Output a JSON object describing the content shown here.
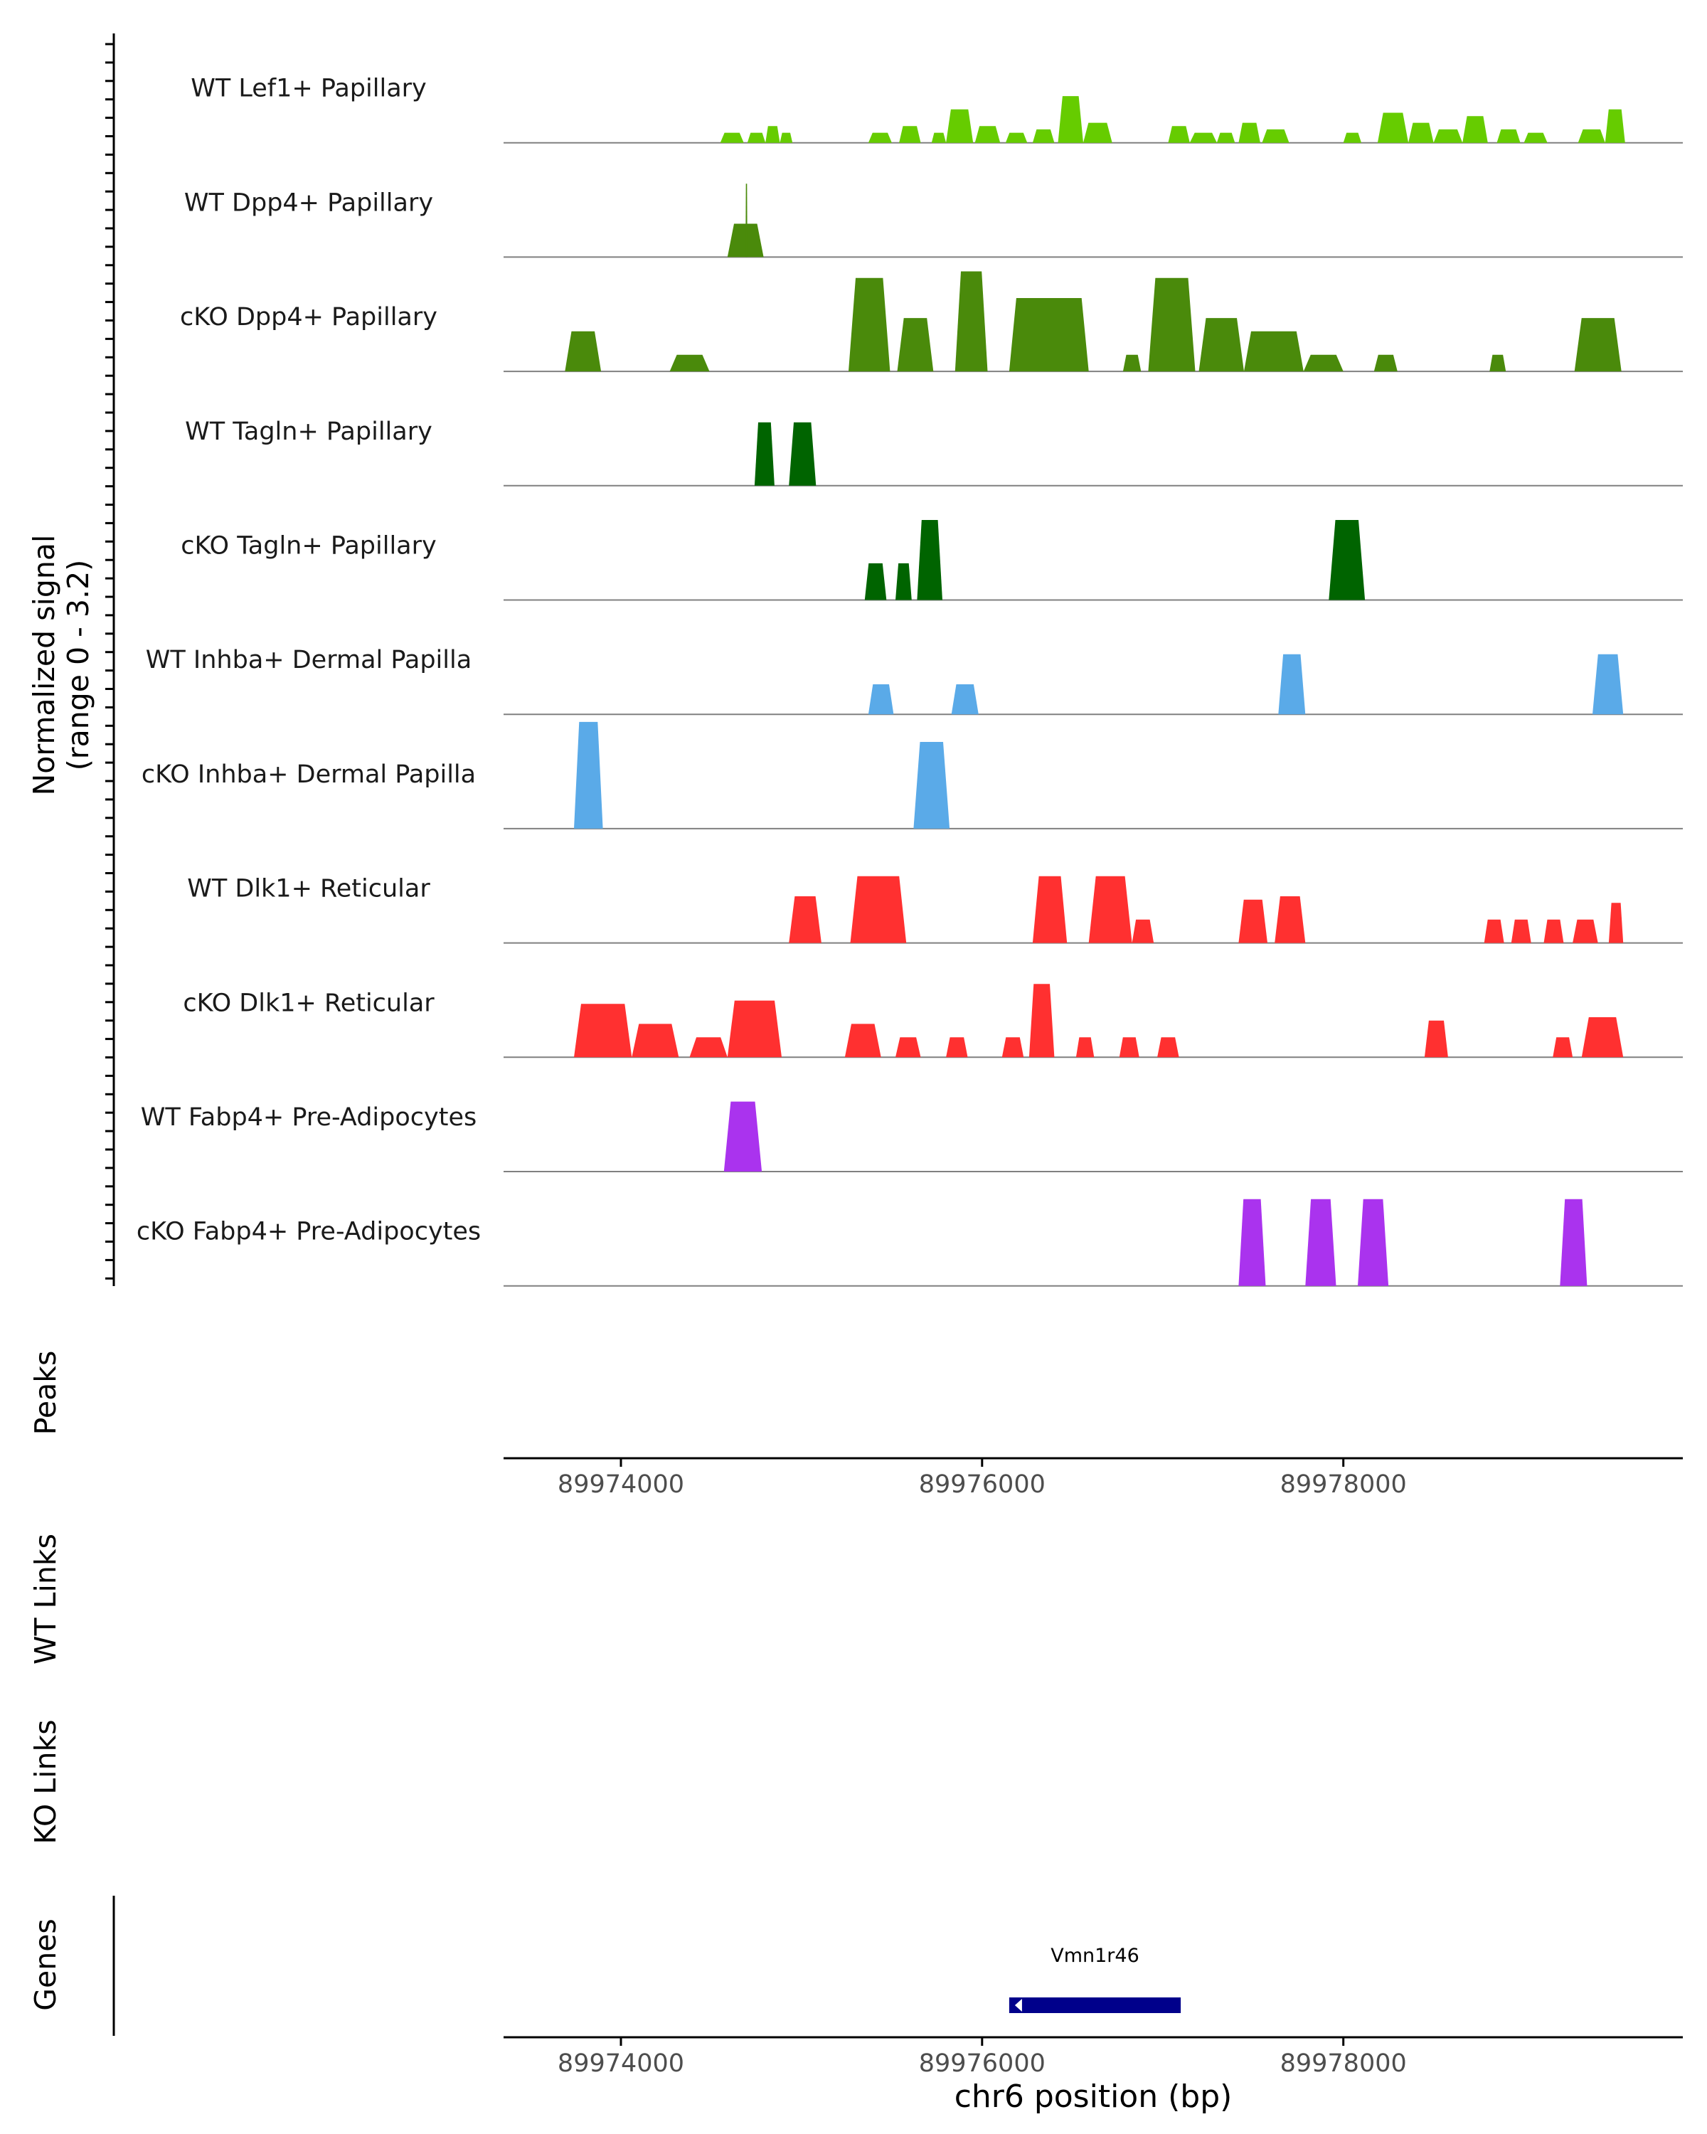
{
  "chart_data": {
    "type": "area",
    "title": "",
    "genomic_unit": "bp",
    "x_range": [
      89973350,
      89979880
    ],
    "x_ticks": [
      89974000,
      89976000,
      89978000
    ],
    "xlabel": "chr6 position (bp)",
    "ylabel_signal": "Normalized signal",
    "ylabel_range": "(range 0 - 3.2)",
    "ylim": [
      0,
      3.2
    ],
    "track_labels": {
      "peaks": "Peaks",
      "wt_links": "WT Links",
      "ko_links": "KO Links",
      "genes": "Genes"
    },
    "genes": [
      {
        "name": "Vmn1r46",
        "start": 89976150,
        "end": 89977100,
        "strand": "-",
        "color": "#00008b"
      }
    ],
    "series": [
      {
        "name": "WT Lef1+ Papillary",
        "color": "#66cc00",
        "peaks": [
          [
            89974550,
            89974680,
            0.3
          ],
          [
            89974700,
            89974800,
            0.3
          ],
          [
            89974800,
            89974880,
            0.5
          ],
          [
            89974880,
            89974950,
            0.3
          ],
          [
            89975370,
            89975500,
            0.3
          ],
          [
            89975540,
            89975660,
            0.5
          ],
          [
            89975720,
            89975800,
            0.3
          ],
          [
            89975800,
            89975950,
            1.0
          ],
          [
            89975960,
            89976100,
            0.5
          ],
          [
            89976130,
            89976250,
            0.3
          ],
          [
            89976280,
            89976400,
            0.4
          ],
          [
            89976420,
            89976560,
            1.4
          ],
          [
            89976560,
            89976720,
            0.6
          ],
          [
            89977030,
            89977150,
            0.5
          ],
          [
            89977150,
            89977300,
            0.3
          ],
          [
            89977300,
            89977400,
            0.3
          ],
          [
            89977420,
            89977540,
            0.6
          ],
          [
            89977550,
            89977700,
            0.4
          ],
          [
            89978000,
            89978100,
            0.3
          ],
          [
            89978190,
            89978360,
            0.9
          ],
          [
            89978360,
            89978500,
            0.6
          ],
          [
            89978500,
            89978660,
            0.4
          ],
          [
            89978660,
            89978800,
            0.8
          ],
          [
            89978850,
            89978980,
            0.4
          ],
          [
            89979000,
            89979130,
            0.3
          ],
          [
            89979300,
            89979450,
            0.4
          ],
          [
            89979450,
            89979560,
            1.0
          ]
        ]
      },
      {
        "name": "WT Dpp4+ Papillary",
        "color": "#4a8a0b",
        "peaks": [
          [
            89974590,
            89974790,
            1.0
          ],
          [
            89974690,
            89974700,
            2.2
          ]
        ]
      },
      {
        "name": "cKO Dpp4+ Papillary",
        "color": "#4a8a0b",
        "peaks": [
          [
            89973690,
            89973890,
            1.2
          ],
          [
            89974270,
            89974490,
            0.5
          ],
          [
            89975260,
            89975490,
            2.8
          ],
          [
            89975530,
            89975730,
            1.6
          ],
          [
            89975850,
            89976030,
            3.0
          ],
          [
            89976150,
            89976590,
            2.2
          ],
          [
            89976780,
            89976880,
            0.5
          ],
          [
            89976920,
            89977180,
            2.8
          ],
          [
            89977200,
            89977450,
            1.6
          ],
          [
            89977450,
            89977780,
            1.2
          ],
          [
            89977780,
            89978000,
            0.5
          ],
          [
            89978170,
            89978300,
            0.5
          ],
          [
            89978810,
            89978900,
            0.5
          ],
          [
            89979280,
            89979540,
            1.6
          ]
        ]
      },
      {
        "name": "WT Tagln+ Papillary",
        "color": "#006400",
        "peaks": [
          [
            89974740,
            89974850,
            1.9
          ],
          [
            89974930,
            89975080,
            1.9
          ]
        ]
      },
      {
        "name": "cKO Tagln+ Papillary",
        "color": "#006400",
        "peaks": [
          [
            89975350,
            89975470,
            1.1
          ],
          [
            89975520,
            89975610,
            1.1
          ],
          [
            89975640,
            89975780,
            2.4
          ],
          [
            89977920,
            89978120,
            2.4
          ]
        ]
      },
      {
        "name": "WT Inhba+ Dermal Papilla",
        "color": "#5aaae8",
        "peaks": [
          [
            89975370,
            89975510,
            0.9
          ],
          [
            89975830,
            89975980,
            0.9
          ],
          [
            89977640,
            89977790,
            1.8
          ],
          [
            89979380,
            89979550,
            1.8
          ]
        ]
      },
      {
        "name": "cKO Inhba+ Dermal Papilla",
        "color": "#5aaae8",
        "peaks": [
          [
            89973740,
            89973900,
            3.2
          ],
          [
            89975620,
            89975820,
            2.6
          ]
        ]
      },
      {
        "name": "WT Dlk1+ Reticular",
        "color": "#ff3030",
        "peaks": [
          [
            89974930,
            89975110,
            1.4
          ],
          [
            89975270,
            89975580,
            2.0
          ],
          [
            89976280,
            89976470,
            2.0
          ],
          [
            89976590,
            89976830,
            2.0
          ],
          [
            89976830,
            89976950,
            0.7
          ],
          [
            89977420,
            89977580,
            1.3
          ],
          [
            89977620,
            89977790,
            1.4
          ],
          [
            89978780,
            89978890,
            0.7
          ],
          [
            89978930,
            89979040,
            0.7
          ],
          [
            89979110,
            89979220,
            0.7
          ],
          [
            89979270,
            89979410,
            0.7
          ],
          [
            89979470,
            89979550,
            1.2
          ]
        ]
      },
      {
        "name": "cKO Dlk1+ Reticular",
        "color": "#ff3030",
        "peaks": [
          [
            89973740,
            89974060,
            1.6
          ],
          [
            89974060,
            89974320,
            1.0
          ],
          [
            89974380,
            89974590,
            0.6
          ],
          [
            89974590,
            89974890,
            1.7
          ],
          [
            89975240,
            89975440,
            1.0
          ],
          [
            89975520,
            89975660,
            0.6
          ],
          [
            89975800,
            89975920,
            0.6
          ],
          [
            89976110,
            89976230,
            0.6
          ],
          [
            89976260,
            89976400,
            2.2
          ],
          [
            89976520,
            89976620,
            0.6
          ],
          [
            89976760,
            89976870,
            0.6
          ],
          [
            89976970,
            89977090,
            0.6
          ],
          [
            89978450,
            89978580,
            1.1
          ],
          [
            89979160,
            89979270,
            0.6
          ],
          [
            89979320,
            89979550,
            1.2
          ]
        ]
      },
      {
        "name": "WT Fabp4+ Pre-Adipocytes",
        "color": "#aa33ee",
        "peaks": [
          [
            89974570,
            89974780,
            2.1
          ]
        ]
      },
      {
        "name": "cKO Fabp4+ Pre-Adipocytes",
        "color": "#aa33ee",
        "peaks": [
          [
            89977420,
            89977570,
            2.6
          ],
          [
            89977790,
            89977960,
            2.6
          ],
          [
            89978080,
            89978250,
            2.6
          ],
          [
            89979200,
            89979350,
            2.6
          ]
        ]
      }
    ]
  }
}
